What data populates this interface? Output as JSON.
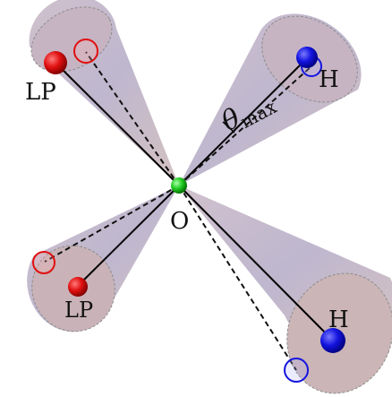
{
  "labels": {
    "center": "O",
    "lone_pair_upper": "LP",
    "lone_pair_lower": "LP",
    "hydrogen_upper": "H",
    "hydrogen_lower": "H",
    "angle_symbol": "θ",
    "angle_subscript": "max"
  },
  "colors": {
    "cone_fill": "#b7aec8",
    "cone_base": "#c9b2b9",
    "oxygen": "#22cc22",
    "lone_pair": "#dd1111",
    "hydrogen": "#1111dd",
    "solid_line": "#000000",
    "dashed_line": "#111111"
  }
}
